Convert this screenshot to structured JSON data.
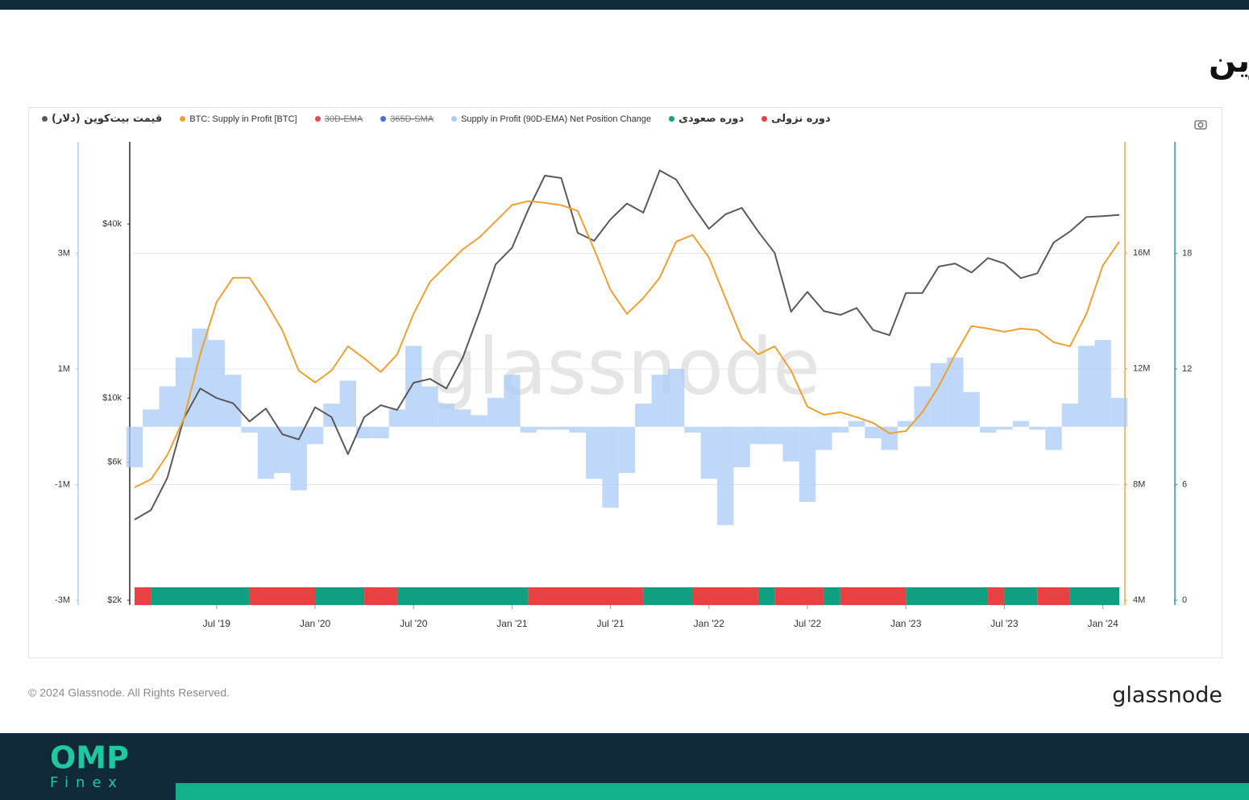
{
  "title": "روند عرضه در سود بیت‌کوین",
  "chart_data": {
    "type": "line",
    "x": [
      "2019-02",
      "2019-03",
      "2019-04",
      "2019-05",
      "2019-06",
      "2019-07",
      "2019-08",
      "2019-09",
      "2019-10",
      "2019-11",
      "2019-12",
      "2020-01",
      "2020-02",
      "2020-03",
      "2020-04",
      "2020-05",
      "2020-06",
      "2020-07",
      "2020-08",
      "2020-09",
      "2020-10",
      "2020-11",
      "2020-12",
      "2021-01",
      "2021-02",
      "2021-03",
      "2021-04",
      "2021-05",
      "2021-06",
      "2021-07",
      "2021-08",
      "2021-09",
      "2021-10",
      "2021-11",
      "2021-12",
      "2022-01",
      "2022-02",
      "2022-03",
      "2022-04",
      "2022-05",
      "2022-06",
      "2022-07",
      "2022-08",
      "2022-09",
      "2022-10",
      "2022-11",
      "2022-12",
      "2023-01",
      "2023-02",
      "2023-03",
      "2023-04",
      "2023-05",
      "2023-06",
      "2023-07",
      "2023-08",
      "2023-09",
      "2023-10",
      "2023-11",
      "2023-12",
      "2024-01",
      "2024-02"
    ],
    "xlim": [
      "2019-02",
      "2024-02"
    ],
    "xticks": [
      {
        "value": "2019-07",
        "label": "Jul '19"
      },
      {
        "value": "2020-01",
        "label": "Jan '20"
      },
      {
        "value": "2020-07",
        "label": "Jul '20"
      },
      {
        "value": "2021-01",
        "label": "Jan '21"
      },
      {
        "value": "2021-07",
        "label": "Jul '21"
      },
      {
        "value": "2022-01",
        "label": "Jan '22"
      },
      {
        "value": "2022-07",
        "label": "Jul '22"
      },
      {
        "value": "2023-01",
        "label": "Jan '23"
      },
      {
        "value": "2023-07",
        "label": "Jul '23"
      },
      {
        "value": "2024-01",
        "label": "Jan '24"
      }
    ],
    "axes": {
      "net": {
        "color": "#a9c9f7",
        "ylim": [
          -3000000,
          4930000
        ],
        "grid": true,
        "yticks": [
          {
            "value": -3000000,
            "label": "-3M"
          },
          {
            "value": -1000000,
            "label": "-1M"
          },
          {
            "value": 1000000,
            "label": "1M"
          },
          {
            "value": 3000000,
            "label": "3M"
          }
        ]
      },
      "price": {
        "color": "#333333",
        "log": true,
        "ylim": [
          2000,
          77000
        ],
        "yticks": [
          {
            "value": 2000,
            "label": "$2k"
          },
          {
            "value": 6000,
            "label": "$6k"
          },
          {
            "value": 10000,
            "label": "$10k"
          },
          {
            "value": 40000,
            "label": "$40k"
          }
        ]
      },
      "supply": {
        "color": "#f0a030",
        "ylim": [
          4000000,
          19850000
        ],
        "yticks": [
          {
            "value": 4000000,
            "label": "4M"
          },
          {
            "value": 8000000,
            "label": "8M"
          },
          {
            "value": 12000000,
            "label": "12M"
          },
          {
            "value": 16000000,
            "label": "16M"
          }
        ]
      },
      "regime": {
        "color": "#109f80",
        "ylim": [
          0,
          23.8
        ],
        "yticks": [
          0,
          6,
          12,
          18
        ]
      }
    },
    "series": [
      {
        "name": "قیمت بیت‌کوین (دلار)",
        "color": "#5a5a5a",
        "axis": "price",
        "values": [
          3800,
          4100,
          5300,
          8500,
          10800,
          10000,
          9600,
          8300,
          9200,
          7500,
          7200,
          9300,
          8600,
          6400,
          8600,
          9450,
          9100,
          11300,
          11650,
          10800,
          13800,
          19700,
          29000,
          33100,
          45000,
          58800,
          57700,
          37300,
          35000,
          41500,
          47100,
          43800,
          61300,
          57000,
          46300,
          38500,
          43200,
          45500,
          37700,
          31800,
          19900,
          23300,
          20000,
          19400,
          20500,
          17200,
          16500,
          23100,
          23100,
          28500,
          29200,
          27200,
          30500,
          29200,
          26000,
          27000,
          34500,
          37700,
          42300,
          42600,
          43000
        ]
      },
      {
        "name": "BTC: Supply in Profit [BTC]",
        "color": "#f0a030",
        "axis": "supply",
        "values": [
          7900000,
          8180000,
          9020000,
          10270000,
          12500000,
          14310000,
          15150000,
          15150000,
          14310000,
          13340000,
          11940000,
          11530000,
          11940000,
          12780000,
          12360000,
          11890000,
          12500000,
          13900000,
          15010000,
          15570000,
          16130000,
          16540000,
          17100000,
          17660000,
          17800000,
          17740000,
          17660000,
          17460000,
          16130000,
          14730000,
          13900000,
          14450000,
          15150000,
          16400000,
          16630000,
          15850000,
          14450000,
          13060000,
          12500000,
          12780000,
          11940000,
          10690000,
          10410000,
          10500000,
          10330000,
          10130000,
          9770000,
          9850000,
          10500000,
          11390000,
          12500000,
          13480000,
          13390000,
          13280000,
          13390000,
          13340000,
          12920000,
          12780000,
          13900000,
          15570000,
          16400000
        ]
      },
      {
        "name": "30D-EMA",
        "color": "#e5484d",
        "hidden": true
      },
      {
        "name": "365D-SMA",
        "color": "#4a6fd6",
        "hidden": true
      },
      {
        "name": "Supply in Profit (90D-EMA) Net Position Change",
        "color": "#a9c9f7",
        "type": "bar",
        "axis": "net",
        "values": [
          -700000,
          300000,
          700000,
          1200000,
          1700000,
          1500000,
          900000,
          -100000,
          -900000,
          -800000,
          -1100000,
          -300000,
          400000,
          800000,
          -200000,
          -200000,
          300000,
          1400000,
          700000,
          400000,
          300000,
          200000,
          500000,
          900000,
          -100000,
          -50000,
          -50000,
          -100000,
          -900000,
          -1400000,
          -800000,
          400000,
          900000,
          1000000,
          -100000,
          -900000,
          -1700000,
          -700000,
          -300000,
          -300000,
          -600000,
          -1300000,
          -400000,
          -100000,
          100000,
          -200000,
          -400000,
          100000,
          700000,
          1100000,
          1200000,
          600000,
          -100000,
          -50000,
          100000,
          -50000,
          -400000,
          400000,
          1400000,
          1500000,
          500000
        ]
      }
    ],
    "periods": [
      {
        "name": "دوره صعودی",
        "color": "#109f80",
        "ranges": [
          [
            "2019-03",
            "2019-09"
          ],
          [
            "2020-01",
            "2020-04"
          ],
          [
            "2020-06",
            "2021-02"
          ],
          [
            "2021-09",
            "2021-12"
          ],
          [
            "2022-04",
            "2022-05"
          ],
          [
            "2022-08",
            "2022-09"
          ],
          [
            "2023-01",
            "2023-06"
          ],
          [
            "2023-07",
            "2023-09"
          ],
          [
            "2023-11",
            "2024-02"
          ]
        ]
      },
      {
        "name": "دوره نزولی",
        "color": "#e84142",
        "ranges": [
          [
            "2019-02",
            "2019-03"
          ],
          [
            "2019-09",
            "2020-01"
          ],
          [
            "2020-04",
            "2020-06"
          ],
          [
            "2021-02",
            "2021-09"
          ],
          [
            "2021-12",
            "2022-04"
          ],
          [
            "2022-05",
            "2022-08"
          ],
          [
            "2022-09",
            "2023-01"
          ],
          [
            "2023-06",
            "2023-07"
          ],
          [
            "2023-09",
            "2023-11"
          ]
        ]
      }
    ]
  },
  "watermark": "glassnode",
  "footer": {
    "copyright": "© 2024 Glassnode. All Rights Reserved.",
    "brand": "glassnode"
  },
  "logo": {
    "name": "OMP",
    "sub": "Finex"
  }
}
